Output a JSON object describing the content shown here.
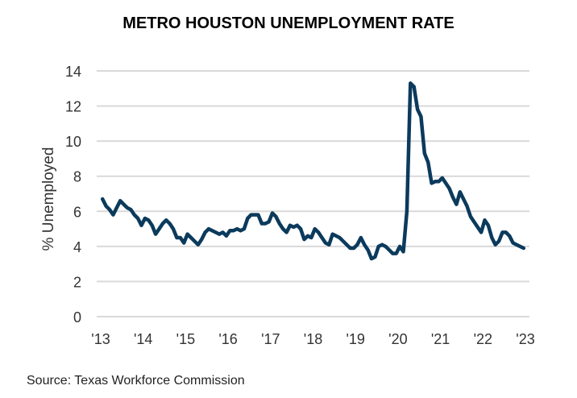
{
  "chart_data": {
    "type": "line",
    "title": "METRO HOUSTON UNEMPLOYMENT RATE",
    "xlabel": "",
    "ylabel": "% Unemployed",
    "source": "Source: Texas Workforce Commission",
    "ylim": [
      0,
      14
    ],
    "yticks": [
      0,
      2,
      4,
      6,
      8,
      10,
      12,
      14
    ],
    "xlim": [
      "2013-01",
      "2023-01"
    ],
    "xtick_labels": [
      "'13",
      "'14",
      "'15",
      "'16",
      "'17",
      "'18",
      "'19",
      "'20",
      "'21",
      "'22",
      "'23"
    ],
    "grid": "horizontal",
    "line_color": "#0b3a5c",
    "frequency": "monthly",
    "start": "2013-01",
    "values": [
      6.7,
      6.3,
      6.1,
      5.8,
      6.2,
      6.6,
      6.4,
      6.2,
      6.1,
      5.8,
      5.6,
      5.2,
      5.6,
      5.5,
      5.2,
      4.7,
      5.0,
      5.3,
      5.5,
      5.3,
      5.0,
      4.5,
      4.5,
      4.2,
      4.7,
      4.5,
      4.3,
      4.1,
      4.4,
      4.8,
      5.0,
      4.9,
      4.8,
      4.7,
      4.8,
      4.6,
      4.9,
      4.9,
      5.0,
      4.9,
      5.0,
      5.6,
      5.8,
      5.8,
      5.8,
      5.3,
      5.3,
      5.4,
      5.9,
      5.7,
      5.3,
      5.0,
      4.8,
      5.2,
      5.1,
      5.2,
      5.0,
      4.4,
      4.6,
      4.5,
      5.0,
      4.8,
      4.5,
      4.2,
      4.1,
      4.7,
      4.6,
      4.5,
      4.3,
      4.1,
      3.9,
      3.9,
      4.1,
      4.5,
      4.1,
      3.8,
      3.3,
      3.4,
      4.0,
      4.1,
      4.0,
      3.8,
      3.6,
      3.6,
      4.0,
      3.7,
      6.0,
      13.3,
      13.1,
      11.8,
      11.4,
      9.3,
      8.8,
      7.6,
      7.7,
      7.7,
      7.9,
      7.6,
      7.3,
      6.8,
      6.4,
      7.1,
      6.7,
      6.3,
      5.7,
      5.4,
      5.1,
      4.8,
      5.5,
      5.2,
      4.5,
      4.1,
      4.3,
      4.8,
      4.8,
      4.6,
      4.2,
      4.1,
      4.0,
      3.9
    ]
  }
}
